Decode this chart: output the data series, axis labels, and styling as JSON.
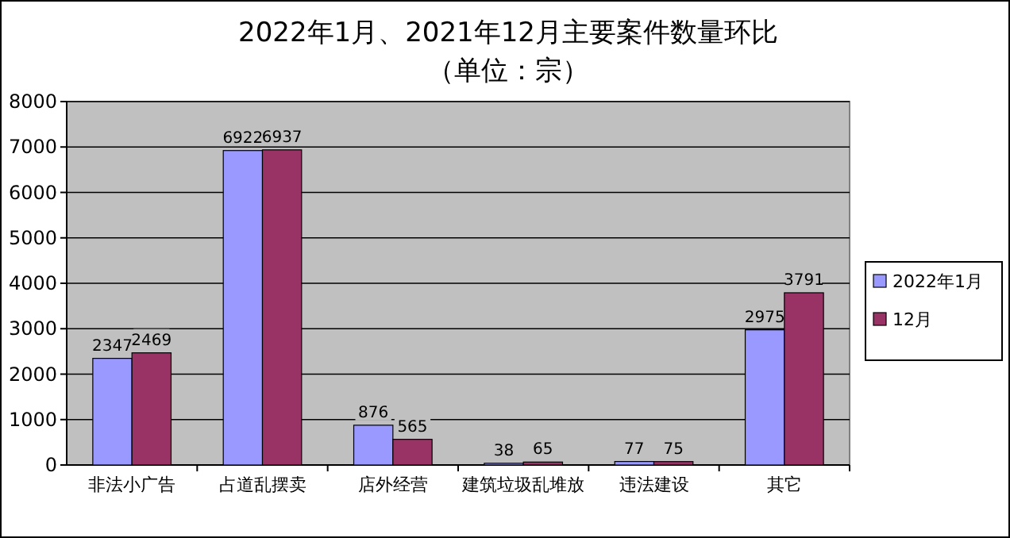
{
  "chart_data": {
    "type": "bar",
    "title": "2022年1月、2021年12月主要案件数量环比",
    "subtitle": "（单位：宗）",
    "categories": [
      "非法小广告",
      "占道乱摆卖",
      "店外经营",
      "建筑垃圾乱堆放",
      "违法建设",
      "其它"
    ],
    "series": [
      {
        "name": "2022年1月",
        "color": "#9999ff",
        "values": [
          2347,
          6922,
          876,
          38,
          77,
          2975
        ]
      },
      {
        "name": "12月",
        "color": "#993366",
        "values": [
          2469,
          6937,
          565,
          65,
          75,
          3791
        ]
      }
    ],
    "ylim": [
      0,
      8000
    ],
    "yticks": [
      0,
      1000,
      2000,
      3000,
      4000,
      5000,
      6000,
      7000,
      8000
    ],
    "grid": "y",
    "legend": "right",
    "data_labels": true
  }
}
